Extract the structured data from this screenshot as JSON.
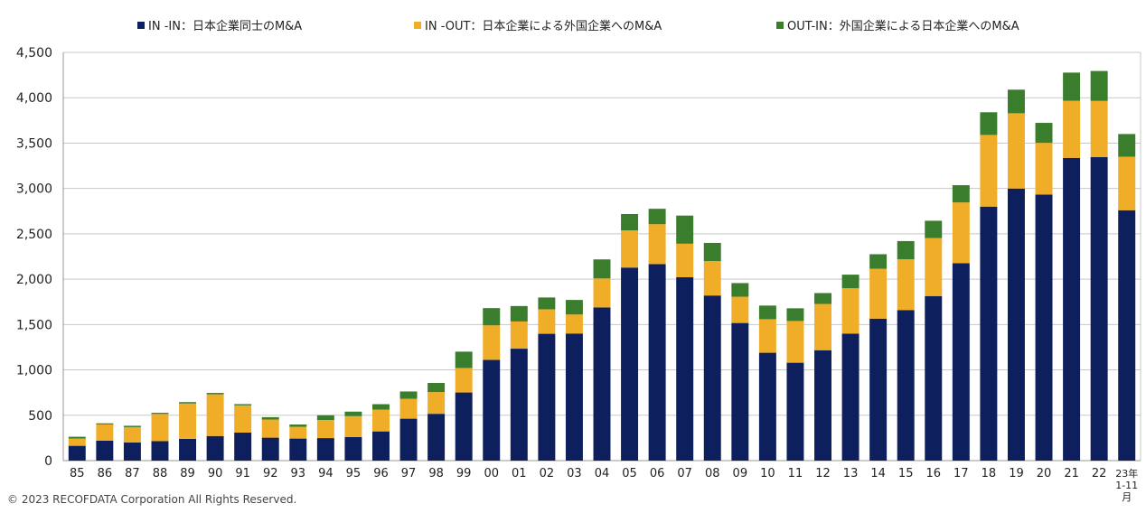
{
  "chart_data": {
    "type": "bar",
    "stacked": true,
    "categories": [
      "85",
      "86",
      "87",
      "88",
      "89",
      "90",
      "91",
      "92",
      "93",
      "94",
      "95",
      "96",
      "97",
      "98",
      "99",
      "00",
      "01",
      "02",
      "03",
      "04",
      "05",
      "06",
      "07",
      "08",
      "09",
      "10",
      "11",
      "12",
      "13",
      "14",
      "15",
      "16",
      "17",
      "18",
      "19",
      "20",
      "21",
      "22",
      "23年 1-11 月"
    ],
    "series": [
      {
        "name": "IN -IN：日本企業同士のM&A",
        "color": "#0d1f5c",
        "values": [
          163,
          219,
          199,
          214,
          240,
          271,
          309,
          253,
          243,
          248,
          260,
          322,
          462,
          516,
          751,
          1111,
          1234,
          1398,
          1401,
          1688,
          2128,
          2166,
          2021,
          1820,
          1517,
          1189,
          1079,
          1217,
          1400,
          1565,
          1660,
          1814,
          2176,
          2800,
          2999,
          2933,
          3337,
          3345,
          2760
        ]
      },
      {
        "name": "IN -OUT：日本企業による外国企業へのM&A",
        "color": "#f0ad28",
        "values": [
          80,
          180,
          170,
          300,
          390,
          460,
          300,
          200,
          130,
          200,
          230,
          240,
          220,
          240,
          270,
          380,
          300,
          270,
          210,
          320,
          410,
          440,
          370,
          380,
          290,
          370,
          460,
          510,
          500,
          550,
          560,
          640,
          670,
          790,
          830,
          570,
          630,
          620,
          590
        ]
      },
      {
        "name": "OUT-IN：外国企業による日本企業へのM&A",
        "color": "#3a7d2c",
        "values": [
          20,
          12,
          15,
          13,
          15,
          15,
          14,
          26,
          25,
          52,
          50,
          60,
          80,
          100,
          180,
          190,
          170,
          130,
          160,
          210,
          180,
          170,
          310,
          200,
          150,
          150,
          140,
          120,
          150,
          160,
          200,
          190,
          190,
          250,
          260,
          220,
          310,
          330,
          250
        ]
      }
    ],
    "ylim": [
      0,
      4500
    ],
    "yticks": [
      0,
      500,
      1000,
      1500,
      2000,
      2500,
      3000,
      3500,
      4000,
      4500
    ],
    "ytick_labels": [
      "0",
      "500",
      "1,000",
      "1,500",
      "2,000",
      "2,500",
      "3,000",
      "3,500",
      "4,000",
      "4,500"
    ],
    "grid": true,
    "legend_position": "top"
  },
  "footer": "© 2023 RECOFDATA Corporation All Rights Reserved."
}
